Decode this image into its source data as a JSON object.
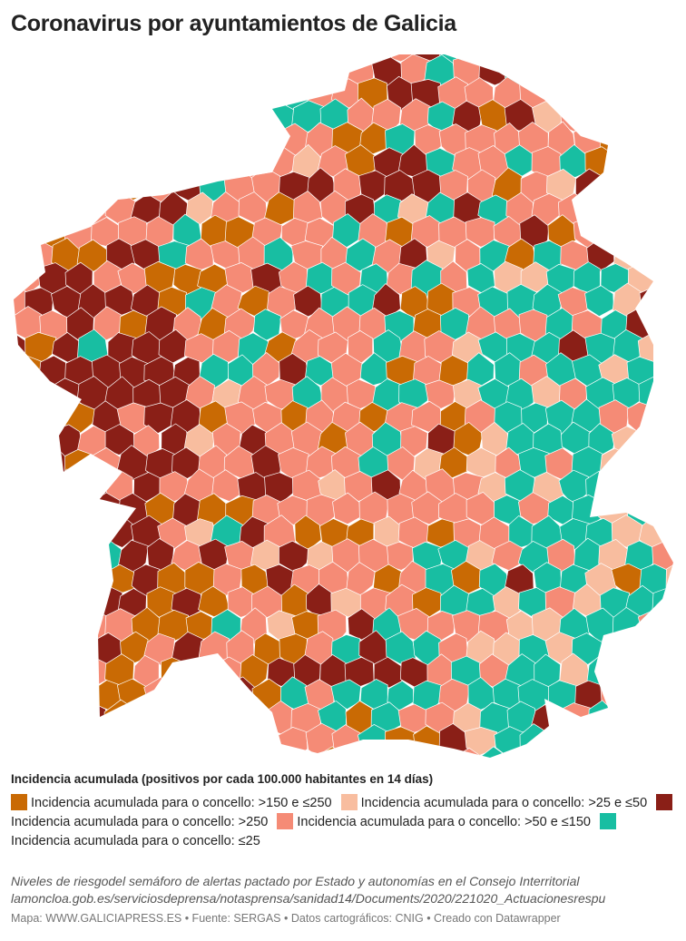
{
  "title": "Coronavirus por ayuntamientos de Galicia",
  "legend": {
    "title": "Incidencia acumulada (positivos por cada 100.000 habitantes en 14 días)",
    "items": [
      {
        "label": "Incidencia acumulada para o concello: >150 e ≤250",
        "color": "#c96a04"
      },
      {
        "label": "Incidencia acumulada para o concello: >25 e ≤50",
        "color": "#f8bd9f"
      },
      {
        "label": "Incidencia acumulada para o concello: >250",
        "color": "#8a1f17"
      },
      {
        "label": "Incidencia acumulada para o concello: >50 e ≤150",
        "color": "#f58b76"
      },
      {
        "label": "Incidencia acumulada para o concello: ≤25",
        "color": "#18bea2"
      }
    ]
  },
  "notes": [
    "Niveles de riesgodel semáforo de alertas pactado por Estado y autonomías en el Consejo Interritorial",
    "lamoncloa.gob.es/serviciosdeprensa/notasprensa/sanidad14/Documents/2020/221020_Actuacionesrespu"
  ],
  "footer": "Mapa: WWW.GALICIAPRESS.ES • Fuente: SERGAS • Datos cartográficos: CNIG • Creado con Datawrapper"
}
